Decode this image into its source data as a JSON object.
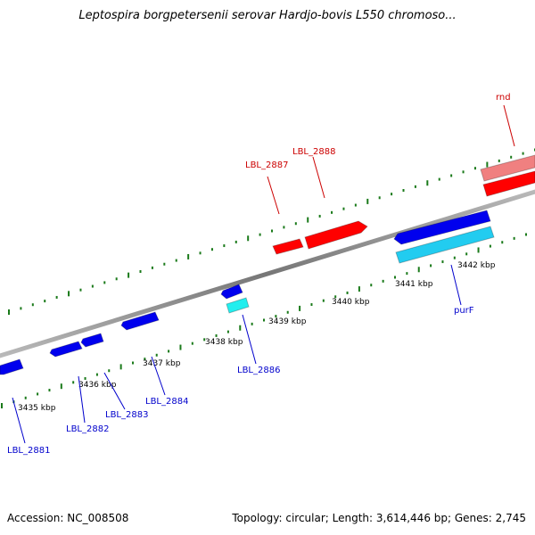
{
  "title": "Leptospira borgpetersenii serovar Hardjo-bovis L550 chromoso...",
  "footer": {
    "accession": "Accession: NC_008508",
    "summary": "Topology: circular; Length: 3,614,446 bp; Genes: 2,745"
  },
  "colors": {
    "forward_gene": "#ff0000",
    "forward_gene_light": "#f08080",
    "reverse_gene": "#0000ee",
    "reverse_gene_light": "#22ccf0",
    "cyan_gene": "#22eeee",
    "backbone": "#888888",
    "tick": "#1a7a1a",
    "forward_label": "#cc0000",
    "reverse_label": "#0000cc"
  },
  "scale_labels": [
    "3435 kbp",
    "3436 kbp",
    "3437 kbp",
    "3438 kbp",
    "3439 kbp",
    "3440 kbp",
    "3441 kbp",
    "3442 kbp"
  ],
  "forward_genes": [
    "LBL_2887",
    "LBL_2888",
    "rnd"
  ],
  "reverse_genes": [
    "LBL_2881",
    "LBL_2882",
    "LBL_2883",
    "LBL_2884",
    "LBL_2886",
    "purF"
  ]
}
